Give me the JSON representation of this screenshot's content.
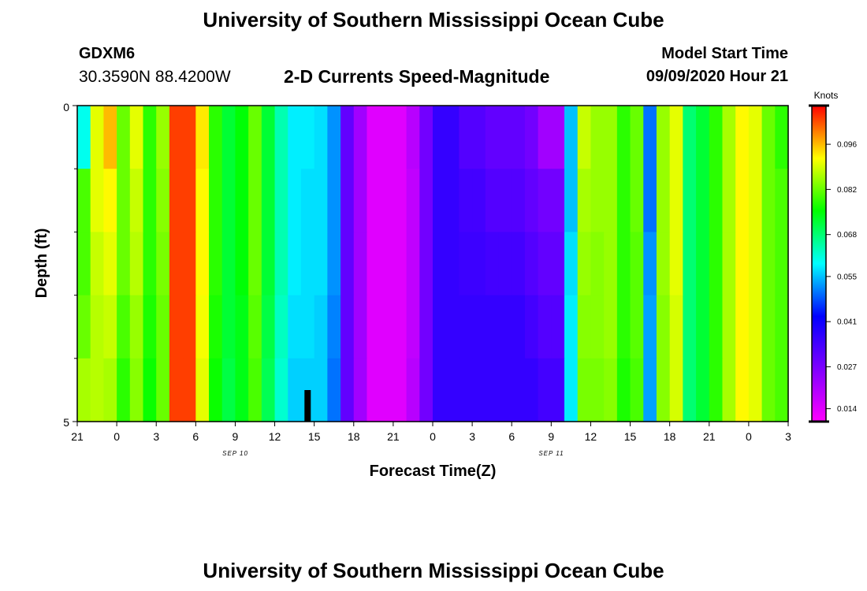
{
  "header": {
    "title": "University of Southern Mississippi Ocean Cube",
    "station_id": "GDXM6",
    "coords": "30.3590N 88.4200W",
    "model_start_label": "Model Start Time",
    "model_start_value": "09/09/2020 Hour 21"
  },
  "footer": {
    "title": "University of Southern Mississippi Ocean Cube"
  },
  "chart_data": {
    "type": "heatmap",
    "title": "2-D Currents Speed-Magnitude",
    "xlabel": "Forecast Time(Z)",
    "ylabel": "Depth (ft)",
    "x_ticks": [
      "21",
      "0",
      "3",
      "6",
      "9",
      "12",
      "15",
      "18",
      "21",
      "0",
      "3",
      "6",
      "9",
      "12",
      "15",
      "18",
      "21",
      "0",
      "3"
    ],
    "x_tick_hours": [
      0,
      3,
      6,
      9,
      12,
      15,
      18,
      21,
      24,
      27,
      30,
      33,
      36,
      39,
      42,
      45,
      48,
      51,
      54
    ],
    "x_range_hours": [
      0,
      54
    ],
    "date_labels": [
      {
        "text": "SEP 10",
        "hour": 15
      },
      {
        "text": "SEP 11",
        "hour": 39
      }
    ],
    "y_ticks": [
      "0",
      "5"
    ],
    "y_range": [
      0,
      5
    ],
    "y_minor_ticks": [
      1,
      2,
      3,
      4
    ],
    "depth_levels": 5,
    "hours_count": 54,
    "colorbar": {
      "label": "Knots",
      "min": 0.01,
      "max": 0.108,
      "ticks": [
        "0.096",
        "0.082",
        "0.068",
        "0.055",
        "0.041",
        "0.027",
        "0.014"
      ],
      "tick_values": [
        0.096,
        0.082,
        0.068,
        0.055,
        0.041,
        0.027,
        0.014
      ]
    },
    "now_marker_hour": 17.5,
    "values": [
      [
        0.06,
        0.09,
        0.096,
        0.082,
        0.09,
        0.078,
        0.085,
        0.104,
        0.104,
        0.093,
        0.078,
        0.072,
        0.075,
        0.082,
        0.072,
        0.064,
        0.058,
        0.058,
        0.057,
        0.052,
        0.03,
        0.022,
        0.014,
        0.014,
        0.014,
        0.019,
        0.028,
        0.036,
        0.036,
        0.032,
        0.032,
        0.03,
        0.03,
        0.03,
        0.028,
        0.022,
        0.022,
        0.055,
        0.088,
        0.085,
        0.085,
        0.078,
        0.082,
        0.05,
        0.085,
        0.09,
        0.068,
        0.072,
        0.078,
        0.086,
        0.092,
        0.09,
        0.082,
        0.078
      ],
      [
        0.08,
        0.09,
        0.092,
        0.082,
        0.088,
        0.078,
        0.084,
        0.104,
        0.104,
        0.092,
        0.078,
        0.072,
        0.075,
        0.082,
        0.072,
        0.064,
        0.058,
        0.057,
        0.057,
        0.052,
        0.03,
        0.022,
        0.014,
        0.014,
        0.014,
        0.018,
        0.028,
        0.036,
        0.036,
        0.034,
        0.034,
        0.032,
        0.032,
        0.032,
        0.03,
        0.028,
        0.028,
        0.055,
        0.086,
        0.085,
        0.085,
        0.078,
        0.082,
        0.05,
        0.085,
        0.09,
        0.068,
        0.072,
        0.078,
        0.086,
        0.092,
        0.09,
        0.082,
        0.08
      ],
      [
        0.08,
        0.088,
        0.09,
        0.082,
        0.087,
        0.078,
        0.083,
        0.104,
        0.104,
        0.092,
        0.078,
        0.072,
        0.075,
        0.082,
        0.072,
        0.064,
        0.058,
        0.057,
        0.057,
        0.052,
        0.03,
        0.022,
        0.014,
        0.014,
        0.014,
        0.018,
        0.028,
        0.036,
        0.036,
        0.035,
        0.035,
        0.034,
        0.034,
        0.034,
        0.032,
        0.03,
        0.03,
        0.057,
        0.085,
        0.084,
        0.085,
        0.078,
        0.081,
        0.052,
        0.085,
        0.09,
        0.068,
        0.072,
        0.078,
        0.086,
        0.092,
        0.09,
        0.082,
        0.08
      ],
      [
        0.082,
        0.087,
        0.088,
        0.08,
        0.085,
        0.077,
        0.082,
        0.104,
        0.104,
        0.091,
        0.077,
        0.072,
        0.074,
        0.081,
        0.071,
        0.063,
        0.057,
        0.057,
        0.056,
        0.051,
        0.03,
        0.022,
        0.014,
        0.014,
        0.014,
        0.018,
        0.028,
        0.036,
        0.036,
        0.036,
        0.036,
        0.036,
        0.036,
        0.036,
        0.034,
        0.032,
        0.032,
        0.058,
        0.084,
        0.084,
        0.085,
        0.078,
        0.081,
        0.053,
        0.084,
        0.089,
        0.068,
        0.072,
        0.078,
        0.086,
        0.092,
        0.09,
        0.082,
        0.08
      ],
      [
        0.086,
        0.087,
        0.086,
        0.078,
        0.084,
        0.076,
        0.082,
        0.104,
        0.104,
        0.09,
        0.076,
        0.071,
        0.074,
        0.08,
        0.07,
        0.062,
        0.056,
        0.056,
        0.056,
        0.05,
        0.03,
        0.022,
        0.014,
        0.014,
        0.014,
        0.019,
        0.028,
        0.036,
        0.036,
        0.036,
        0.036,
        0.036,
        0.036,
        0.036,
        0.036,
        0.034,
        0.034,
        0.058,
        0.083,
        0.083,
        0.084,
        0.077,
        0.08,
        0.053,
        0.084,
        0.089,
        0.068,
        0.072,
        0.078,
        0.086,
        0.092,
        0.09,
        0.082,
        0.08
      ]
    ]
  }
}
